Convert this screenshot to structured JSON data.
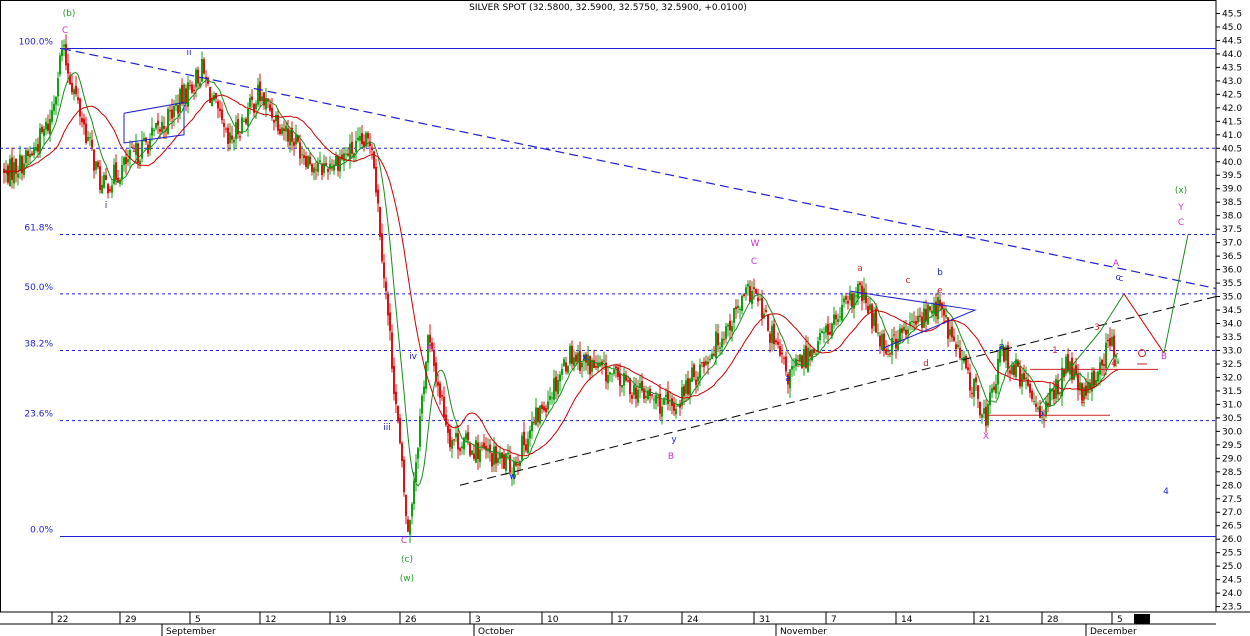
{
  "chart_data": {
    "type": "candlestick",
    "title": "SILVER SPOT (32.5800, 32.5900, 32.5750, 32.5900, +0.0100)",
    "ylim": [
      23.3,
      46.0
    ],
    "y_ticks": [
      "23.5",
      "24.0",
      "24.5",
      "25.0",
      "25.5",
      "26.0",
      "26.5",
      "27.0",
      "27.5",
      "28.0",
      "28.5",
      "29.0",
      "29.5",
      "30.0",
      "30.5",
      "31.0",
      "31.5",
      "32.0",
      "32.5",
      "33.0",
      "33.5",
      "34.0",
      "34.5",
      "35.0",
      "35.5",
      "36.0",
      "36.5",
      "37.0",
      "37.5",
      "38.0",
      "38.5",
      "39.0",
      "39.5",
      "40.0",
      "40.5",
      "41.0",
      "41.5",
      "42.0",
      "42.5",
      "43.0",
      "43.5",
      "44.0",
      "44.5",
      "45.0",
      "45.5"
    ],
    "x_day_ticks": [
      "22",
      "29",
      "5",
      "12",
      "19",
      "26",
      "3",
      "10",
      "17",
      "24",
      "31",
      "7",
      "14",
      "21",
      "28",
      "5"
    ],
    "x_month_labels": [
      "September",
      "October",
      "November",
      "December"
    ],
    "fib_levels": [
      {
        "label": "100.0%",
        "value": 44.2
      },
      {
        "label": "61.8%",
        "value": 37.3
      },
      {
        "label": "50.0%",
        "value": 35.1
      },
      {
        "label": "38.2%",
        "value": 33.0
      },
      {
        "label": "23.6%",
        "value": 30.4
      },
      {
        "label": "0.0%",
        "value": 26.1
      }
    ],
    "horizontal_lines": [
      40.5
    ],
    "key_prices": [
      {
        "date": "Aug 22",
        "value": 44.2
      },
      {
        "date": "Aug 26",
        "value": 39.0
      },
      {
        "date": "Sep 2",
        "value": 41.2
      },
      {
        "date": "Sep 6",
        "value": 43.4
      },
      {
        "date": "Sep 9",
        "value": 40.6
      },
      {
        "date": "Sep 13",
        "value": 42.5
      },
      {
        "date": "Sep 19",
        "value": 39.7
      },
      {
        "date": "Sep 23",
        "value": 40.8
      },
      {
        "date": "Sep 26",
        "value": 26.1
      },
      {
        "date": "Sep 27",
        "value": 33.4
      },
      {
        "date": "Sep 29",
        "value": 29.8
      },
      {
        "date": "Oct 6",
        "value": 28.7
      },
      {
        "date": "Oct 12",
        "value": 32.9
      },
      {
        "date": "Oct 20",
        "value": 30.8
      },
      {
        "date": "Oct 31",
        "value": 35.3
      },
      {
        "date": "Nov 2",
        "value": 32.0
      },
      {
        "date": "Nov 9",
        "value": 35.2
      },
      {
        "date": "Nov 11",
        "value": 33.1
      },
      {
        "date": "Nov 16",
        "value": 34.7
      },
      {
        "date": "Nov 21",
        "value": 30.5
      },
      {
        "date": "Nov 23",
        "value": 33.0
      },
      {
        "date": "Nov 28",
        "value": 30.7
      },
      {
        "date": "Nov 30",
        "value": 32.5
      },
      {
        "date": "Dec 1",
        "value": 31.2
      },
      {
        "date": "Dec 5",
        "value": 33.4
      },
      {
        "date": "Dec 6",
        "value": 32.59
      }
    ],
    "annotations": [
      {
        "text": "(b)",
        "color": "#2a9a2a"
      },
      {
        "text": "C",
        "color": "#cc33cc"
      },
      {
        "text": "ii",
        "color": "#1f1fd0"
      },
      {
        "text": "i",
        "color": "#1f1fd0"
      },
      {
        "text": "iii",
        "color": "#1f1fd0"
      },
      {
        "text": "iv",
        "color": "#1f1fd0"
      },
      {
        "text": "A",
        "color": "#cc33cc"
      },
      {
        "text": "C",
        "color": "#cc33cc"
      },
      {
        "text": "(c)",
        "color": "#2a9a2a"
      },
      {
        "text": "(w)",
        "color": "#2a9a2a"
      },
      {
        "text": "w",
        "color": "#1f1fd0"
      },
      {
        "text": "x",
        "color": "#1f1fd0"
      },
      {
        "text": "y",
        "color": "#1f1fd0"
      },
      {
        "text": "B",
        "color": "#cc33cc"
      },
      {
        "text": "W",
        "color": "#cc33cc"
      },
      {
        "text": "C",
        "color": "#cc33cc"
      },
      {
        "text": "a",
        "color": "#1f1fd0"
      },
      {
        "text": "a",
        "color": "#cc2222"
      },
      {
        "text": "b",
        "color": "#cc2222"
      },
      {
        "text": "c",
        "color": "#cc2222"
      },
      {
        "text": "d",
        "color": "#cc2222"
      },
      {
        "text": "e",
        "color": "#cc2222"
      },
      {
        "text": "b",
        "color": "#1f1fd0"
      },
      {
        "text": "c",
        "color": "#1f1fd0"
      },
      {
        "text": "X",
        "color": "#cc33cc"
      },
      {
        "text": "a",
        "color": "#1f1fd0"
      },
      {
        "text": "b",
        "color": "#1f1fd0"
      },
      {
        "text": "1",
        "color": "#cc2222"
      },
      {
        "text": "2",
        "color": "#cc2222"
      },
      {
        "text": "3",
        "color": "#cc2222"
      },
      {
        "text": "4",
        "color": "#cc2222"
      },
      {
        "text": "A",
        "color": "#cc33cc"
      },
      {
        "text": "c",
        "color": "#1f1fd0"
      },
      {
        "text": "B",
        "color": "#cc33cc"
      },
      {
        "text": "(x)",
        "color": "#2a9a2a"
      },
      {
        "text": "Y",
        "color": "#cc33cc"
      },
      {
        "text": "C",
        "color": "#cc33cc"
      },
      {
        "text": "4",
        "color": "#1f1fd0"
      }
    ],
    "colors": {
      "up": "#10a010",
      "down": "#dd1111",
      "fib": "#1f1fd0",
      "ma_fast": "#1a8a1a",
      "ma_slow": "#cc0000",
      "trend": "#000000",
      "wave": "#cc33cc"
    }
  }
}
